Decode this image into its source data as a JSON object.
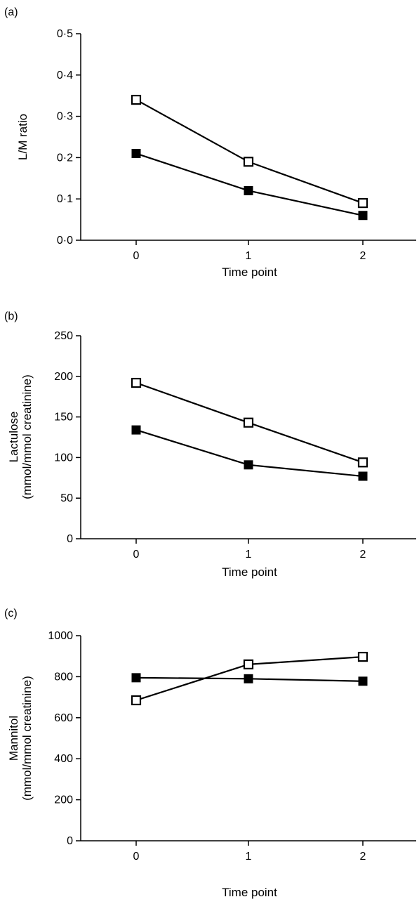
{
  "chart_data": [
    {
      "type": "line",
      "panel_label": "(a)",
      "categories": [
        "0",
        "1",
        "2"
      ],
      "x": [
        0,
        1,
        2
      ],
      "xlabel": "Time point",
      "ylabel_lines": [
        "L/M ratio"
      ],
      "ylim": [
        0,
        0.5
      ],
      "yticks": [
        0,
        0.1,
        0.2,
        0.3,
        0.4,
        0.5
      ],
      "ytick_labels": [
        "0·0",
        "0·1",
        "0·2",
        "0·3",
        "0·4",
        "0·5"
      ],
      "series": [
        {
          "marker": "open-square",
          "values": [
            0.34,
            0.19,
            0.09
          ]
        },
        {
          "marker": "filled-square",
          "values": [
            0.21,
            0.12,
            0.06
          ]
        }
      ]
    },
    {
      "type": "line",
      "panel_label": "(b)",
      "categories": [
        "0",
        "1",
        "2"
      ],
      "x": [
        0,
        1,
        2
      ],
      "xlabel": "Time point",
      "ylabel_lines": [
        "Lactulose",
        "(mmol/mmol creatinine)"
      ],
      "ylim": [
        0,
        250
      ],
      "yticks": [
        0,
        50,
        100,
        150,
        200,
        250
      ],
      "ytick_labels": [
        "0",
        "50",
        "100",
        "150",
        "200",
        "250"
      ],
      "series": [
        {
          "marker": "open-square",
          "values": [
            192,
            143,
            94
          ]
        },
        {
          "marker": "filled-square",
          "values": [
            134,
            91,
            77
          ]
        }
      ]
    },
    {
      "type": "line",
      "panel_label": "(c)",
      "categories": [
        "0",
        "1",
        "2"
      ],
      "x": [
        0,
        1,
        2
      ],
      "xlabel": "Time point",
      "ylabel_lines": [
        "Mannitol",
        "(mmol/mmol creatinine)"
      ],
      "ylim": [
        0,
        1000
      ],
      "yticks": [
        0,
        200,
        400,
        600,
        800,
        1000
      ],
      "ytick_labels": [
        "0",
        "200",
        "400",
        "600",
        "800",
        "1000"
      ],
      "series": [
        {
          "marker": "open-square",
          "values": [
            685,
            860,
            897
          ]
        },
        {
          "marker": "filled-square",
          "values": [
            795,
            790,
            778
          ]
        }
      ]
    }
  ]
}
